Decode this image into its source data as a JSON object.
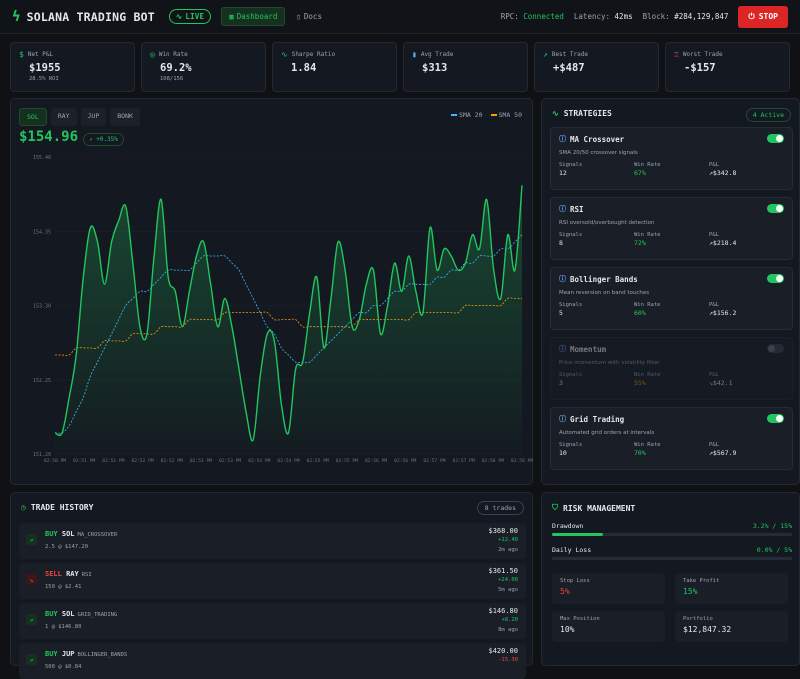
{
  "app": {
    "title": "SOLANA TRADING BOT",
    "live_label": "LIVE"
  },
  "nav": {
    "dashboard": "Dashboard",
    "docs": "Docs"
  },
  "status": {
    "rpc_label": "RPC:",
    "rpc_value": "Connected",
    "latency_label": "Latency:",
    "latency_value": "42ms",
    "block_label": "Block:",
    "block_value": "#284,129,847"
  },
  "stop_label": "STOP",
  "stats": [
    {
      "label": "Net P&L",
      "value": "$1955",
      "sub": "28.5% ROI",
      "icon": "dollar-icon"
    },
    {
      "label": "Win Rate",
      "value": "69.2%",
      "sub": "108/156",
      "icon": "target-icon"
    },
    {
      "label": "Sharpe Ratio",
      "value": "1.84",
      "sub": "",
      "icon": "pulse-icon"
    },
    {
      "label": "Avg Trade",
      "value": "$313",
      "sub": "",
      "icon": "bars-icon"
    },
    {
      "label": "Best Trade",
      "value": "+$487",
      "sub": "",
      "icon": "trend-up-icon"
    },
    {
      "label": "Worst Trade",
      "value": "-$157",
      "sub": "",
      "icon": "trophy-icon"
    }
  ],
  "chart": {
    "tabs": [
      "SOL",
      "RAY",
      "JUP",
      "BONK"
    ],
    "active_tab": "SOL",
    "price": "$154.96",
    "change": "+0.35%",
    "legend": [
      {
        "label": "SMA 20",
        "color": "#38bdf8"
      },
      {
        "label": "SMA 50",
        "color": "#f59e0b"
      }
    ]
  },
  "chart_data": {
    "type": "line",
    "y_ticks": [
      "155.40",
      "154.35",
      "153.30",
      "152.25",
      "151.20"
    ],
    "ylim": [
      151.2,
      155.4
    ],
    "x_ticks": [
      "02:50 PM",
      "02:51 PM",
      "02:51 PM",
      "02:52 PM",
      "02:52 PM",
      "02:53 PM",
      "02:53 PM",
      "02:54 PM",
      "02:54 PM",
      "02:55 PM",
      "02:55 PM",
      "02:56 PM",
      "02:56 PM",
      "02:57 PM",
      "02:57 PM",
      "02:58 PM",
      "02:58 PM"
    ],
    "series": [
      {
        "name": "SOL",
        "color": "#22c55e",
        "values": [
          151.5,
          151.5,
          152.0,
          152.6,
          153.7,
          154.4,
          154.2,
          153.6,
          154.2,
          154.5,
          154.7,
          153.9,
          153.0,
          152.9,
          154.0,
          154.8,
          153.7,
          153.5,
          153.0,
          153.5,
          154.0,
          154.2,
          153.6,
          153.0,
          153.4,
          153.0,
          152.4,
          151.8,
          151.4,
          152.3,
          152.9,
          152.8,
          151.9,
          151.5,
          152.4,
          152.5,
          153.2,
          153.7,
          152.7,
          153.4,
          154.2,
          153.8,
          153.0,
          153.1,
          153.6,
          153.8,
          152.9,
          153.3,
          153.9,
          153.5,
          154.0,
          153.5,
          153.2,
          154.4,
          153.8,
          154.1,
          154.0,
          153.8,
          153.9,
          154.3,
          154.1,
          154.8,
          153.8,
          153.4,
          154.3,
          153.8,
          155.0
        ]
      },
      {
        "name": "SMA 20",
        "color": "#38bdf8",
        "values": [
          151.5,
          151.5,
          151.6,
          151.8,
          152.0,
          152.3,
          152.5,
          152.7,
          152.9,
          153.1,
          153.3,
          153.4,
          153.5,
          153.5,
          153.6,
          153.7,
          153.8,
          153.8,
          153.8,
          153.8,
          153.9,
          154.0,
          154.0,
          154.0,
          154.0,
          153.9,
          153.8,
          153.6,
          153.4,
          153.2,
          153.0,
          152.9,
          152.7,
          152.6,
          152.5,
          152.5,
          152.5,
          152.6,
          152.7,
          152.8,
          152.9,
          153.0,
          153.1,
          153.2,
          153.2,
          153.3,
          153.3,
          153.4,
          153.5,
          153.5,
          153.6,
          153.6,
          153.6,
          153.6,
          153.7,
          153.7,
          153.8,
          153.8,
          153.9,
          153.9,
          154.0,
          154.0,
          154.0,
          154.1,
          154.1,
          154.2,
          154.3
        ]
      },
      {
        "name": "SMA 50",
        "color": "#f59e0b",
        "values": [
          152.6,
          152.6,
          152.6,
          152.7,
          152.7,
          152.7,
          152.7,
          152.8,
          152.8,
          152.8,
          152.8,
          152.9,
          152.9,
          152.9,
          152.9,
          153.0,
          153.0,
          153.0,
          153.0,
          153.1,
          153.1,
          153.1,
          153.1,
          153.1,
          153.2,
          153.2,
          153.2,
          153.2,
          153.2,
          153.2,
          153.2,
          153.1,
          153.1,
          153.1,
          153.1,
          153.0,
          153.0,
          153.0,
          153.0,
          153.0,
          153.0,
          153.0,
          153.0,
          153.1,
          153.1,
          153.1,
          153.1,
          153.1,
          153.1,
          153.1,
          153.1,
          153.2,
          153.2,
          153.2,
          153.2,
          153.2,
          153.2,
          153.2,
          153.3,
          153.3,
          153.3,
          153.3,
          153.3,
          153.3,
          153.4,
          153.4,
          153.4
        ]
      }
    ]
  },
  "strategies": {
    "title": "STRATEGIES",
    "badge": "4 Active",
    "items": [
      {
        "name": "MA Crossover",
        "desc": "SMA 20/50 crossover signals",
        "signals": "12",
        "win_rate": "67%",
        "pnl": "$342.8",
        "enabled": true
      },
      {
        "name": "RSI",
        "desc": "RSI oversold/overbought detection",
        "signals": "8",
        "win_rate": "72%",
        "pnl": "$218.4",
        "enabled": true
      },
      {
        "name": "Bollinger Bands",
        "desc": "Mean reversion on band touches",
        "signals": "5",
        "win_rate": "60%",
        "pnl": "$156.2",
        "enabled": true
      },
      {
        "name": "Momentum",
        "desc": "Price momentum with volatility filter",
        "signals": "3",
        "win_rate": "55%",
        "pnl": "$42.1",
        "enabled": false
      },
      {
        "name": "Grid Trading",
        "desc": "Automated grid orders at intervals",
        "signals": "10",
        "win_rate": "70%",
        "pnl": "$567.9",
        "enabled": true
      }
    ],
    "labels": {
      "signals": "Signals",
      "win_rate": "Win Rate",
      "pnl": "P&L"
    }
  },
  "trades": {
    "title": "TRADE HISTORY",
    "badge": "8 trades",
    "items": [
      {
        "side": "BUY",
        "token": "SOL",
        "strategy": "MA_CROSSOVER",
        "detail": "2.5 @ $147.20",
        "total": "$368.00",
        "pnl": "+12.40",
        "time": "2m ago"
      },
      {
        "side": "SELL",
        "token": "RAY",
        "strategy": "RSI",
        "detail": "150 @ $2.41",
        "total": "$361.50",
        "pnl": "+24.00",
        "time": "5m ago"
      },
      {
        "side": "BUY",
        "token": "SOL",
        "strategy": "GRID_TRADING",
        "detail": "1 @ $146.80",
        "total": "$146.80",
        "pnl": "+8.20",
        "time": "8m ago"
      },
      {
        "side": "BUY",
        "token": "JUP",
        "strategy": "BOLLINGER_BANDS",
        "detail": "500 @ $0.84",
        "total": "$420.00",
        "pnl": "-15.30",
        "time": ""
      }
    ]
  },
  "risk": {
    "title": "RISK MANAGEMENT",
    "drawdown_label": "Drawdown",
    "drawdown_value": "3.2% / 15%",
    "drawdown_fraction": 0.213,
    "daily_loss_label": "Daily Loss",
    "daily_loss_value": "0.0% / 5%",
    "daily_loss_fraction": 0,
    "boxes": [
      {
        "label": "Stop Loss",
        "value": "5%",
        "color": "#ef4444"
      },
      {
        "label": "Take Profit",
        "value": "15%",
        "color": "#22c55e"
      },
      {
        "label": "Max Position",
        "value": "10%",
        "color": "#e5e7eb"
      },
      {
        "label": "Portfolio",
        "value": "$12,847.32",
        "color": "#e5e7eb"
      }
    ]
  }
}
